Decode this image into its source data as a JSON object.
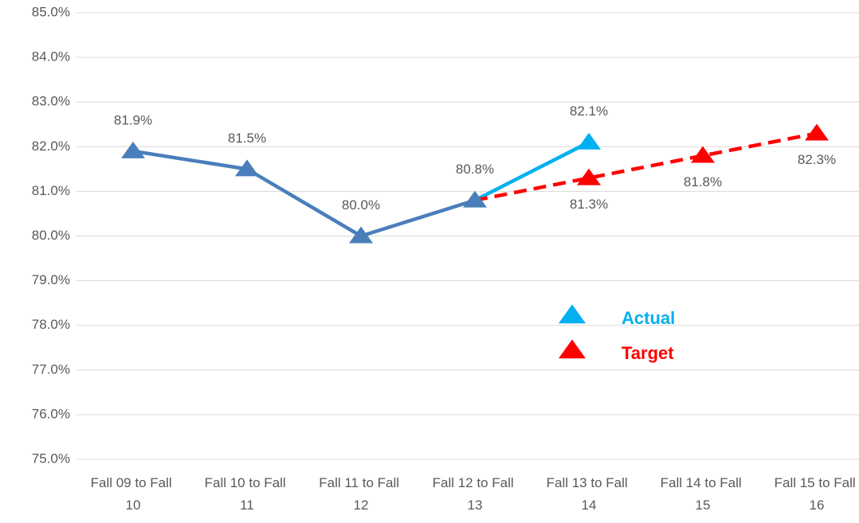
{
  "chart_data": {
    "type": "line",
    "categories": [
      "Fall 09 to Fall 10",
      "Fall 10 to Fall 11",
      "Fall 11 to Fall 12",
      "Fall 12 to Fall 13",
      "Fall 13 to Fall 14",
      "Fall 14 to Fall 15",
      "Fall 15 to Fall 16"
    ],
    "series": [
      {
        "color": "#4a7ebb",
        "dash": false,
        "label_position": "above",
        "in_legend": false,
        "values": [
          81.9,
          81.5,
          80.0,
          80.8,
          null,
          null,
          null
        ],
        "value_labels": [
          "81.9%",
          "81.5%",
          "80.0%",
          "80.8%",
          null,
          null,
          null
        ]
      },
      {
        "name": "Actual",
        "color": "#00b0f0",
        "dash": false,
        "label_position": "above",
        "in_legend": true,
        "values": [
          null,
          null,
          null,
          80.8,
          82.1,
          null,
          null
        ],
        "value_labels": [
          null,
          null,
          null,
          null,
          "82.1%",
          null,
          null
        ]
      },
      {
        "name": "Target",
        "color": "#ff0000",
        "dash": true,
        "label_position": "below",
        "in_legend": true,
        "values": [
          null,
          null,
          null,
          80.8,
          81.3,
          81.8,
          82.3
        ],
        "value_labels": [
          null,
          null,
          null,
          null,
          "81.3%",
          "81.8%",
          "82.3%"
        ]
      }
    ],
    "ylim": [
      75,
      85
    ],
    "yticks": [
      {
        "value": 75,
        "label": "75.0%"
      },
      {
        "value": 76,
        "label": "76.0%"
      },
      {
        "value": 77,
        "label": "77.0%"
      },
      {
        "value": 78,
        "label": "78.0%"
      },
      {
        "value": 79,
        "label": "79.0%"
      },
      {
        "value": 80,
        "label": "80.0%"
      },
      {
        "value": 81,
        "label": "81.0%"
      },
      {
        "value": 82,
        "label": "82.0%"
      },
      {
        "value": 83,
        "label": "83.0%"
      },
      {
        "value": 84,
        "label": "84.0%"
      },
      {
        "value": 85,
        "label": "85.0%"
      }
    ],
    "grid": true,
    "marker": "triangle"
  }
}
